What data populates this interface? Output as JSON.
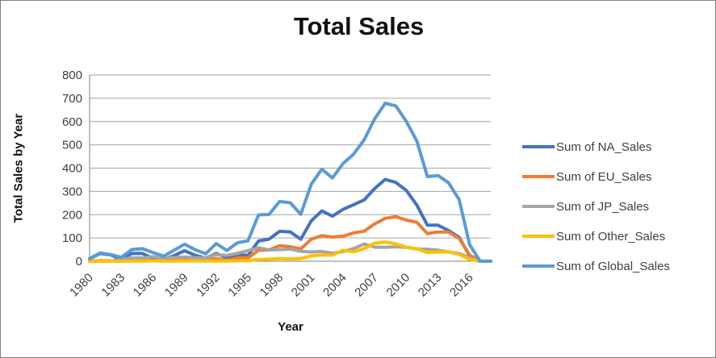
{
  "chart_data": {
    "type": "line",
    "title": "Total Sales",
    "xlabel": "Year",
    "ylabel": "Total Sales by Year",
    "ylim": [
      0,
      800
    ],
    "y_ticks": [
      0,
      100,
      200,
      300,
      400,
      500,
      600,
      700,
      800
    ],
    "grid": true,
    "legend_position": "right",
    "x": [
      1980,
      1981,
      1982,
      1983,
      1984,
      1985,
      1986,
      1987,
      1988,
      1989,
      1990,
      1991,
      1992,
      1993,
      1994,
      1995,
      1996,
      1997,
      1998,
      1999,
      2000,
      2001,
      2002,
      2003,
      2004,
      2005,
      2006,
      2007,
      2008,
      2009,
      2010,
      2011,
      2012,
      2013,
      2014,
      2015,
      2016,
      2017,
      2020
    ],
    "x_tick_labels": [
      "1980",
      "1983",
      "1986",
      "1989",
      "1992",
      "1995",
      "1998",
      "2001",
      "2004",
      "2007",
      "2010",
      "2013",
      "2016"
    ],
    "series": [
      {
        "name": "Sum of NA_Sales",
        "color": "#4472C4",
        "values": [
          10.59,
          33.4,
          26.92,
          7.76,
          33.28,
          33.73,
          12.5,
          8.46,
          23.87,
          45.15,
          25.46,
          12.76,
          33.87,
          15.12,
          28.15,
          24.82,
          86.76,
          94.75,
          128.36,
          126.06,
          94.49,
          173.98,
          216.19,
          193.59,
          222.59,
          242.61,
          263.12,
          312.05,
          351.44,
          338.85,
          304.24,
          241.06,
          154.96,
          154.77,
          131.97,
          102.82,
          22.66,
          0,
          0.27
        ]
      },
      {
        "name": "Sum of EU_Sales",
        "color": "#ED7D31",
        "values": [
          0.67,
          1.96,
          1.65,
          0.8,
          2.1,
          4.74,
          2.84,
          1.41,
          6.59,
          8.44,
          7.63,
          3.95,
          11.71,
          4.65,
          14.88,
          14.9,
          47.26,
          48.32,
          66.9,
          62.67,
          52.75,
          94.89,
          109.74,
          103.81,
          107.32,
          121.94,
          129.24,
          160.5,
          184.4,
          191.59,
          176.73,
          167.44,
          118.78,
          125.8,
          125.65,
          97.71,
          26.76,
          0,
          0
        ]
      },
      {
        "name": "Sum of JP_Sales",
        "color": "#A5A5A5",
        "values": [
          0,
          0,
          0,
          8.1,
          14.27,
          14.56,
          19.81,
          11.63,
          15.76,
          18.36,
          14.88,
          14.78,
          28.91,
          25.33,
          33.99,
          45.75,
          57.44,
          48.87,
          50.04,
          52.34,
          42.77,
          39.86,
          41.76,
          34.2,
          41.65,
          54.28,
          73.73,
          60.29,
          60.26,
          61.89,
          59.49,
          53.04,
          51.74,
          47.59,
          39.46,
          33.72,
          13.7,
          0.05,
          0
        ]
      },
      {
        "name": "Sum of Other_Sales",
        "color": "#FFC000",
        "values": [
          0.12,
          0.32,
          0.31,
          0.14,
          0.7,
          0.92,
          1.93,
          0.2,
          0.99,
          1.5,
          1.4,
          0.74,
          1.65,
          0.89,
          2.2,
          2.64,
          7.69,
          9.13,
          11.03,
          10.05,
          11.62,
          22.76,
          27.28,
          26.01,
          47.29,
          40.58,
          54.43,
          77.6,
          82.39,
          74.77,
          59.9,
          54.39,
          37.82,
          39.82,
          40.02,
          30.01,
          7.75,
          0,
          0.02
        ]
      },
      {
        "name": "Sum of Global_Sales",
        "color": "#5B9BD5",
        "values": [
          11.38,
          35.77,
          28.86,
          16.79,
          50.36,
          53.94,
          37.07,
          21.74,
          47.22,
          73.45,
          49.39,
          32.23,
          76.16,
          45.98,
          79.17,
          88.11,
          199.15,
          200.98,
          256.47,
          251.27,
          201.56,
          331.47,
          395.52,
          357.85,
          419.31,
          459.94,
          521.04,
          611.13,
          678.9,
          667.3,
          600.45,
          515.99,
          363.54,
          368.11,
          337.05,
          264.44,
          70.93,
          0.05,
          0.29
        ]
      }
    ],
    "colors": {
      "gridline": "#A6A6A6",
      "axis_line": "#808080",
      "tick_text": "#3f3f3f",
      "frame_border": "#7f7f7f"
    }
  }
}
